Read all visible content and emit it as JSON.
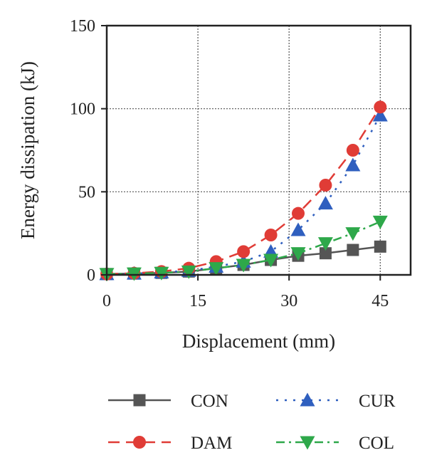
{
  "chart_data": {
    "type": "line",
    "title": "",
    "xlabel": "Displacement (mm)",
    "ylabel": "Energy dissipation (kJ)",
    "xlim": [
      0,
      50
    ],
    "ylim": [
      0,
      150
    ],
    "xticks": [
      0,
      15,
      30,
      45
    ],
    "yticks": [
      0,
      50,
      100,
      150
    ],
    "x_tick_labels": [
      "0",
      "15",
      "30",
      "45"
    ],
    "y_tick_labels": [
      "0",
      "50",
      "100",
      "150"
    ],
    "grid": true,
    "legend_position": "bottom",
    "x": [
      0,
      4.5,
      9,
      13.5,
      18,
      22.5,
      27,
      31.5,
      36,
      40.5,
      45
    ],
    "series": [
      {
        "name": "CON",
        "color": "#555555",
        "marker": "square",
        "line_style": "solid",
        "values": [
          0.5,
          0.8,
          1.2,
          2,
          4,
          6,
          9,
          11.5,
          13,
          15,
          17
        ]
      },
      {
        "name": "CUR",
        "color": "#2f5fbf",
        "marker": "triangle-up",
        "line_style": "dotted",
        "values": [
          0.5,
          0.8,
          1.5,
          2.5,
          5,
          8,
          14,
          27,
          43,
          66,
          96
        ]
      },
      {
        "name": "DAM",
        "color": "#e03c36",
        "marker": "circle",
        "line_style": "dashed",
        "values": [
          0.5,
          1,
          2,
          4,
          8,
          14,
          24,
          37,
          54,
          75,
          101
        ]
      },
      {
        "name": "COL",
        "color": "#2ea84a",
        "marker": "triangle-down",
        "line_style": "dash-dot",
        "values": [
          0.5,
          0.8,
          1.2,
          2,
          4,
          6,
          9,
          13,
          19,
          25,
          32
        ]
      }
    ]
  }
}
